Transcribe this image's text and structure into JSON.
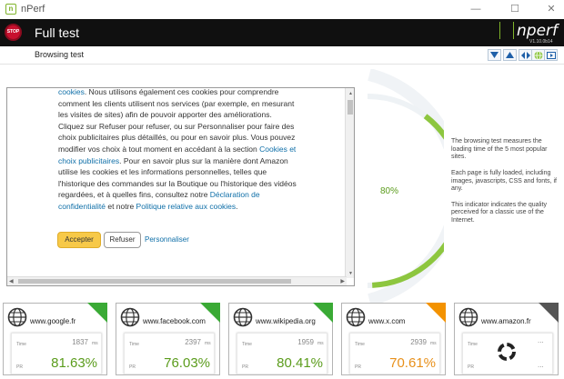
{
  "window": {
    "title": "nPerf",
    "minimize": "—",
    "maximize": "☐",
    "close": "✕"
  },
  "header": {
    "stop_label": "STOP",
    "title": "Full test",
    "logo": "nperf",
    "version": "V1.10.0b14"
  },
  "subheader": {
    "title": "Browsing test"
  },
  "consent": {
    "para1_a": "cookies",
    "para1_b": ". Nous utilisons également ces cookies pour comprendre comment les clients utilisent nos services (par exemple, en mesurant les visites de sites) afin de pouvoir apporter des améliorations. Cliquez sur Refuser pour refuser, ou sur Personnaliser pour faire des choix publicitaires plus détaillés, ou pour en savoir plus. Vous pouvez modifier vos choix à tout moment en accédant à la section ",
    "link_choices": "Cookies et choix publicitaires",
    "para2": ". Pour en savoir plus sur la manière dont Amazon utilise les cookies et les informations personnelles, telles que l'historique des commandes sur la Boutique ou l'historique des vidéos regardées, et à quelles fins, consultez notre ",
    "link_privacy": "Déclaration de confidentialité",
    "para3": " et notre ",
    "link_cookies": "Politique relative aux cookies",
    "para4": ".",
    "accept": "Accepter",
    "refuse": "Refuser",
    "customize": "Personnaliser"
  },
  "gauge": {
    "value_label": "80%",
    "value": 80,
    "color": "#8dc63f"
  },
  "info": {
    "p1": "The browsing test measures the loading time of the 5 most popular sites.",
    "p2": "Each page is fully loaded, including images, javascripts, CSS and fonts, if any.",
    "p3": "This indicator indicates the quality perceived for a classic use of the Internet."
  },
  "labels": {
    "time": "Time",
    "ms": "ms",
    "pr": "PR",
    "dots": "..."
  },
  "sites": [
    {
      "name": "www.google.fr",
      "time": "1837",
      "pr": "81.63%",
      "status": "done",
      "accent": "#3aaa35"
    },
    {
      "name": "www.facebook.com",
      "time": "2397",
      "pr": "76.03%",
      "status": "done",
      "accent": "#3aaa35"
    },
    {
      "name": "www.wikipedia.org",
      "time": "1959",
      "pr": "80.41%",
      "status": "done",
      "accent": "#3aaa35"
    },
    {
      "name": "www.x.com",
      "time": "2939",
      "pr": "70.61%",
      "status": "done",
      "accent": "#f39200"
    },
    {
      "name": "www.amazon.fr",
      "time": "",
      "pr": "",
      "status": "loading",
      "accent": "#555555"
    }
  ]
}
